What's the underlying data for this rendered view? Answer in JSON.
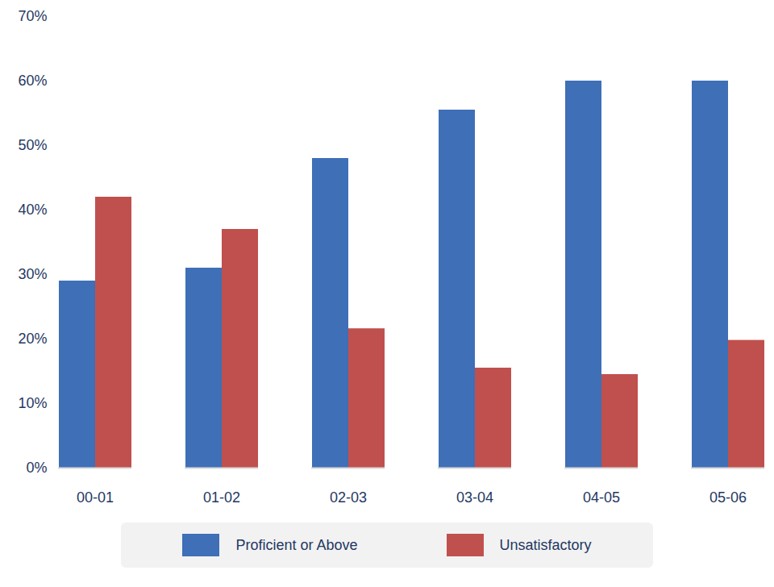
{
  "chart_data": {
    "type": "bar",
    "categories": [
      "00-01",
      "01-02",
      "02-03",
      "03-04",
      "04-05",
      "05-06"
    ],
    "series": [
      {
        "name": "Proficient or Above",
        "color": "#3e6fb7",
        "values": [
          29,
          31,
          48,
          55.5,
          60,
          60
        ]
      },
      {
        "name": "Unsatisfactory",
        "color": "#c0504d",
        "values": [
          42,
          37,
          21.6,
          15.5,
          14.5,
          19.8
        ]
      }
    ],
    "ylim": [
      0,
      70
    ],
    "yticks": [
      {
        "value": 0,
        "label": "0%"
      },
      {
        "value": 10,
        "label": "10%"
      },
      {
        "value": 20,
        "label": "20%"
      },
      {
        "value": 30,
        "label": "30%"
      },
      {
        "value": 40,
        "label": "40%"
      },
      {
        "value": 50,
        "label": "50%"
      },
      {
        "value": 60,
        "label": "60%"
      },
      {
        "value": 70,
        "label": "70%"
      }
    ],
    "grid": false,
    "legend": "bottom"
  }
}
